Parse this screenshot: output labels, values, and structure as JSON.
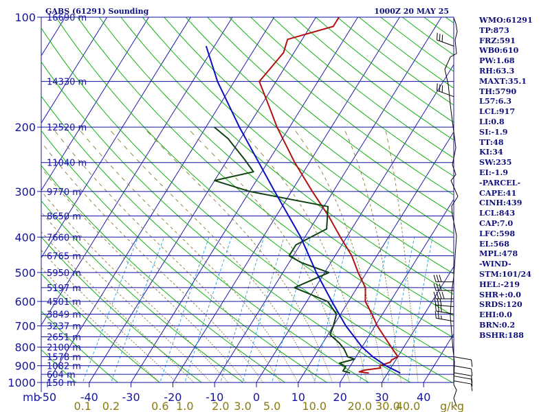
{
  "title_left": "GABS (61291) Sounding",
  "title_right": "1000Z 20 MAY 25",
  "colors": {
    "frame": "#1010a0",
    "isobar": "#1010a0",
    "isotherm": "#1d1db0",
    "dry_adiabat": "#10b010",
    "moist_adiabat": "#8a7a30",
    "mixing_ratio": "#20a0e0",
    "temperature": "#b01010",
    "dewpoint": "#104010",
    "parcel": "#0c0cc0",
    "wind": "#000000"
  },
  "chart_data": {
    "type": "skew-t",
    "xlim": [
      -50,
      50
    ],
    "pressure_range": [
      1000,
      100
    ],
    "axis_unit_label": "mb",
    "pressure_levels": [
      100,
      200,
      300,
      400,
      500,
      600,
      700,
      800,
      900,
      1000
    ],
    "pressure_ticks": [
      {
        "p": 100,
        "label": "100"
      },
      {
        "p": 200,
        "label": "200"
      },
      {
        "p": 300,
        "label": "300"
      },
      {
        "p": 400,
        "label": "400"
      },
      {
        "p": 500,
        "label": "500"
      },
      {
        "p": 600,
        "label": "600"
      },
      {
        "p": 700,
        "label": "700"
      },
      {
        "p": 800,
        "label": "800"
      },
      {
        "p": 900,
        "label": "900"
      },
      {
        "p": 1000,
        "label": "1000"
      }
    ],
    "height_ticks": [
      {
        "p": 100,
        "label": "16690 m"
      },
      {
        "p": 150,
        "label": "14330 m"
      },
      {
        "p": 200,
        "label": "12520 m"
      },
      {
        "p": 250,
        "label": "11040 m"
      },
      {
        "p": 300,
        "label": "9770 m"
      },
      {
        "p": 350,
        "label": "8650 m"
      },
      {
        "p": 400,
        "label": "7660 m"
      },
      {
        "p": 450,
        "label": "6765 m"
      },
      {
        "p": 500,
        "label": "5950 m"
      },
      {
        "p": 550,
        "label": "5197 m"
      },
      {
        "p": 600,
        "label": "4501 m"
      },
      {
        "p": 650,
        "label": "3849 m"
      },
      {
        "p": 700,
        "label": "3237 m"
      },
      {
        "p": 750,
        "label": "2651 m"
      },
      {
        "p": 800,
        "label": "2100 m"
      },
      {
        "p": 850,
        "label": "1578 m"
      },
      {
        "p": 900,
        "label": "1082 m"
      },
      {
        "p": 950,
        "label": "604 m"
      },
      {
        "p": 1000,
        "label": "150 m"
      }
    ],
    "temperature_ticks": [
      {
        "t": -50,
        "label": "-50"
      },
      {
        "t": -40,
        "label": "-40"
      },
      {
        "t": -30,
        "label": "-30"
      },
      {
        "t": -20,
        "label": "-20"
      },
      {
        "t": -10,
        "label": "-10"
      },
      {
        "t": 0,
        "label": "0"
      },
      {
        "t": 10,
        "label": "10"
      },
      {
        "t": 20,
        "label": "20"
      },
      {
        "t": 30,
        "label": "30"
      },
      {
        "t": 40,
        "label": "40"
      }
    ],
    "mixing_ratio_unit": "g/kg",
    "mixing_ratio_ticks": [
      {
        "w": 0.1,
        "label": "0.1"
      },
      {
        "w": 0.2,
        "label": "0.2"
      },
      {
        "w": 0.6,
        "label": "0.6"
      },
      {
        "w": 1.0,
        "label": "1.0"
      },
      {
        "w": 2.0,
        "label": "2.0"
      },
      {
        "w": 3.0,
        "label": "3.0"
      },
      {
        "w": 5.0,
        "label": "5.0"
      },
      {
        "w": 10.0,
        "label": "10.0"
      },
      {
        "w": 20.0,
        "label": "20.0"
      },
      {
        "w": 30.0,
        "label": "30.0"
      },
      {
        "w": 40.0,
        "label": "40.0"
      }
    ],
    "series": [
      {
        "name": "Temperature",
        "key": "temperature",
        "points": [
          [
            942,
            25.5
          ],
          [
            935,
            23.0
          ],
          [
            925,
            24.0
          ],
          [
            913,
            27.5
          ],
          [
            900,
            27.0
          ],
          [
            880,
            29.0
          ],
          [
            868,
            29.0
          ],
          [
            850,
            30.0
          ],
          [
            800,
            27.0
          ],
          [
            700,
            20.5
          ],
          [
            650,
            17.5
          ],
          [
            600,
            14.0
          ],
          [
            550,
            12.0
          ],
          [
            500,
            8.0
          ],
          [
            450,
            4.0
          ],
          [
            400,
            -1.5
          ],
          [
            350,
            -7.5
          ],
          [
            300,
            -15.0
          ],
          [
            250,
            -23.5
          ],
          [
            200,
            -33.0
          ],
          [
            180,
            -37.0
          ],
          [
            150,
            -44.0
          ],
          [
            125,
            -42.5
          ],
          [
            115,
            -43.5
          ],
          [
            106,
            -34.5
          ],
          [
            100,
            -34.5
          ]
        ]
      },
      {
        "name": "Dewpoint",
        "key": "dewpoint",
        "points": [
          [
            942,
            21.0
          ],
          [
            930,
            19.0
          ],
          [
            905,
            19.0
          ],
          [
            885,
            17.0
          ],
          [
            863,
            20.0
          ],
          [
            850,
            18.0
          ],
          [
            810,
            16.0
          ],
          [
            780,
            14.0
          ],
          [
            740,
            10.5
          ],
          [
            700,
            10.0
          ],
          [
            650,
            9.0
          ],
          [
            600,
            5.0
          ],
          [
            550,
            -5.0
          ],
          [
            500,
            1.0
          ],
          [
            470,
            -7.0
          ],
          [
            450,
            -11.0
          ],
          [
            420,
            -11.0
          ],
          [
            380,
            -6.0
          ],
          [
            330,
            -9.0
          ],
          [
            300,
            -30.0
          ],
          [
            280,
            -40.0
          ],
          [
            265,
            -32.0
          ],
          [
            245,
            -36.0
          ],
          [
            215,
            -43.0
          ],
          [
            200,
            -48.0
          ]
        ]
      },
      {
        "name": "Parcel",
        "key": "parcel",
        "points": [
          [
            942,
            33.0
          ],
          [
            900,
            28.5
          ],
          [
            850,
            24.0
          ],
          [
            800,
            20.0
          ],
          [
            700,
            13.0
          ],
          [
            600,
            6.0
          ],
          [
            500,
            -2.0
          ],
          [
            400,
            -11.0
          ],
          [
            300,
            -24.0
          ],
          [
            200,
            -42.0
          ],
          [
            150,
            -54.0
          ],
          [
            120,
            -62.0
          ]
        ]
      }
    ],
    "wind_barbs": [
      {
        "p": 120,
        "dir": 290,
        "spd": 30
      },
      {
        "p": 165,
        "dir": 290,
        "spd": 30
      },
      {
        "p": 530,
        "dir": 270,
        "spd": 30
      },
      {
        "p": 560,
        "dir": 270,
        "spd": 30
      },
      {
        "p": 590,
        "dir": 270,
        "spd": 40
      },
      {
        "p": 620,
        "dir": 275,
        "spd": 30
      },
      {
        "p": 650,
        "dir": 280,
        "spd": 30
      },
      {
        "p": 680,
        "dir": 280,
        "spd": 25
      },
      {
        "p": 850,
        "dir": 100,
        "spd": 10
      },
      {
        "p": 900,
        "dir": 100,
        "spd": 10
      },
      {
        "p": 940,
        "dir": 100,
        "spd": 10
      },
      {
        "p": 960,
        "dir": 100,
        "spd": 10
      },
      {
        "p": 990,
        "dir": 100,
        "spd": 10
      }
    ],
    "hodograph_points": [
      [
        660,
        26
      ],
      [
        663,
        34
      ],
      [
        665,
        46
      ],
      [
        662,
        58
      ],
      [
        664,
        78
      ],
      [
        655,
        83
      ],
      [
        647,
        101
      ],
      [
        652,
        123
      ],
      [
        655,
        153
      ],
      [
        663,
        215
      ],
      [
        658,
        240
      ],
      [
        663,
        254
      ],
      [
        656,
        263
      ],
      [
        666,
        286
      ],
      [
        657,
        300
      ],
      [
        658,
        313
      ],
      [
        664,
        343
      ],
      [
        660,
        403
      ],
      [
        657,
        425
      ],
      [
        655,
        460
      ],
      [
        659,
        510
      ],
      [
        661,
        527
      ],
      [
        660,
        560
      ],
      [
        664,
        568
      ],
      [
        660,
        580
      ],
      [
        664,
        592
      ]
    ]
  },
  "indices": [
    "WMO:61291",
    "TP:873",
    "FRZ:591",
    "WB0:610",
    "PW:1.68",
    "RH:63.3",
    "MAXT:35.1",
    "TH:5790",
    "L57:6.3",
    "LCL:917",
    "LI:0.8",
    "SI:-1.9",
    "TT:48",
    "KI:34",
    "SW:235",
    "EI:-1.9",
    "-PARCEL-",
    "CAPE:41",
    "CINH:439",
    "LCL:843",
    "CAP:7.0",
    "LFC:598",
    "EL:568",
    "MPL:478",
    "-WIND-",
    "STM:101/24",
    "HEL:-219",
    "SHR+:0.0",
    "SRDS:120",
    "EHI:0.0",
    "BRN:0.2",
    "BSHR:188"
  ]
}
